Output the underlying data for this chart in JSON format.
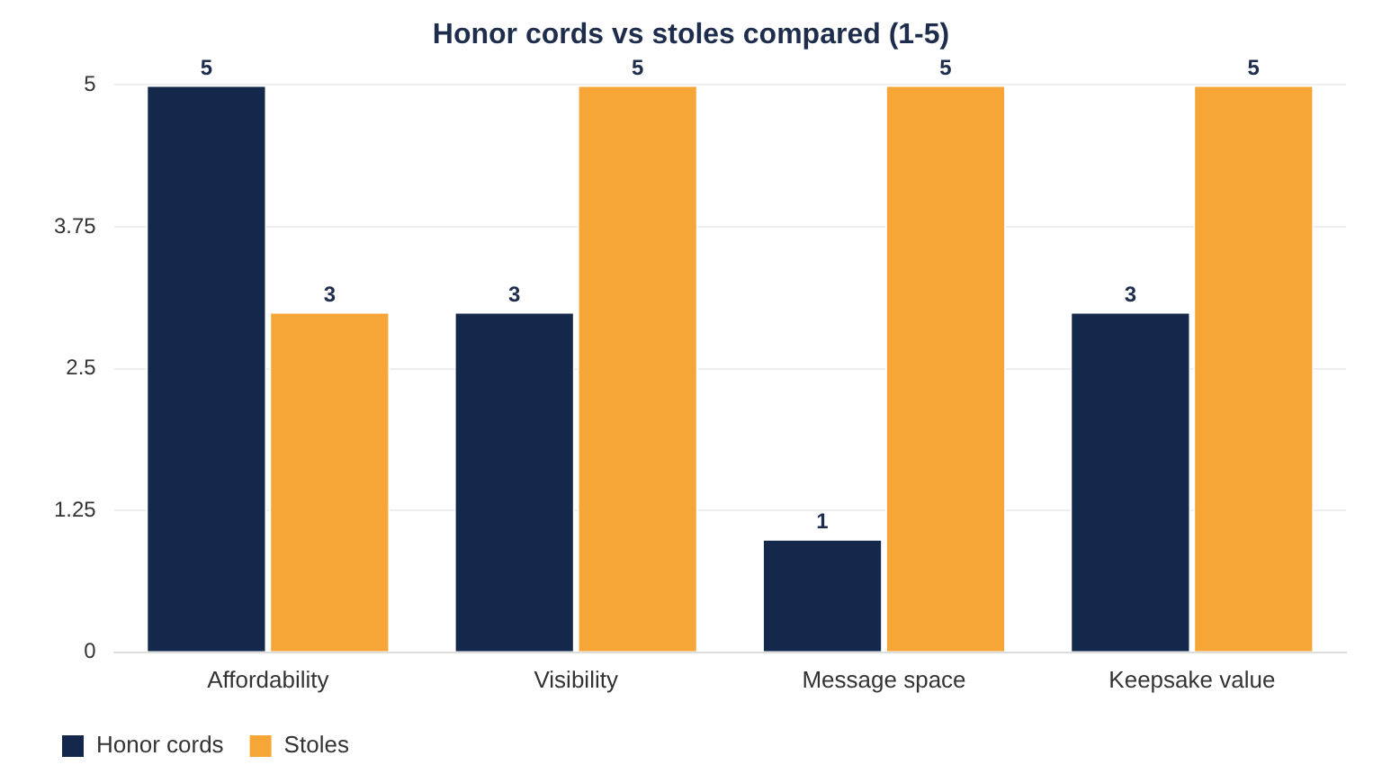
{
  "chart_data": {
    "type": "bar",
    "title": "Honor cords vs stoles compared (1-5)",
    "categories": [
      "Affordability",
      "Visibility",
      "Message space",
      "Keepsake value"
    ],
    "series": [
      {
        "name": "Honor cords",
        "color": "#14284b",
        "values": [
          5,
          3,
          1,
          3
        ]
      },
      {
        "name": "Stoles",
        "color": "#f5a636",
        "values": [
          3,
          5,
          5,
          5
        ]
      }
    ],
    "ylim": [
      0,
      5
    ],
    "yticks": [
      0,
      1.25,
      2.5,
      3.75,
      5
    ],
    "grid": "y",
    "legend": "bottom left",
    "data_labels": true
  }
}
